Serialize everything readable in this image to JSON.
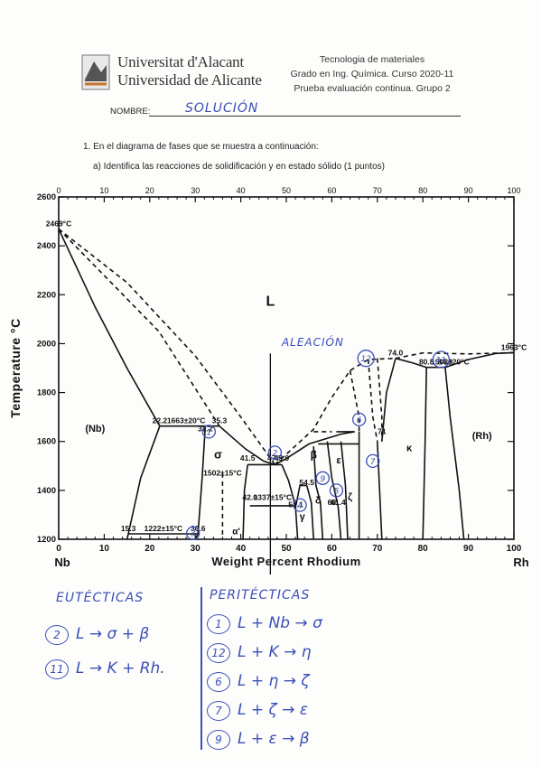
{
  "header": {
    "university_ca": "Universitat d'Alacant",
    "university_es": "Universidad de Alicante",
    "course_title": "Tecnologia de materiales",
    "course_line": "Grado en Ing. Química. Curso 2020-11",
    "test_line": "Prueba evaluación continua. Grupo 2",
    "name_label": "NOMBRE:",
    "name_value": "SOLUCIÓN"
  },
  "questions": {
    "q1": "1.   En el diagrama de fases que se muestra a continuación:",
    "q1a": "a)   Identifica las reacciones de solidificación y en estado sólido (1 puntos)"
  },
  "chart_data": {
    "type": "phase-diagram",
    "title": "",
    "xlabel": "Weight Percent Rhodium",
    "ylabel": "Temperature °C",
    "xlim": [
      0,
      100
    ],
    "ylim": [
      1200,
      2600
    ],
    "x_ticks": [
      "0",
      "10",
      "20",
      "30",
      "40",
      "50",
      "60",
      "70",
      "80",
      "90",
      "100"
    ],
    "y_ticks": [
      "1200",
      "1400",
      "1600",
      "1800",
      "2000",
      "2200",
      "2400",
      "2600"
    ],
    "x_end_left": "Nb",
    "x_end_right": "Rh",
    "phase_labels": [
      "L",
      "(Nb)",
      "(Rh)",
      "σ",
      "β",
      "ε",
      "ζ",
      "γ",
      "δ",
      "κ",
      "α'"
    ],
    "annotations": [
      {
        "text": "2469°C",
        "x": 0,
        "y": 2469
      },
      {
        "text": "1963°C",
        "x": 100,
        "y": 1963
      },
      {
        "text": "1663±20°C",
        "x": 28,
        "y": 1663
      },
      {
        "text": "22.2",
        "x": 22.2,
        "y": 1663
      },
      {
        "text": "35.3",
        "x": 35.3,
        "y": 1663
      },
      {
        "text": "32.2",
        "x": 32.2,
        "y": 1630
      },
      {
        "text": "1903±20°C",
        "x": 86,
        "y": 1903
      },
      {
        "text": "84.9",
        "x": 84.9,
        "y": 1903
      },
      {
        "text": "80.8",
        "x": 80.8,
        "y": 1903
      },
      {
        "text": "74.0",
        "x": 74.0,
        "y": 1940
      },
      {
        "text": "41.5",
        "x": 41.5,
        "y": 1510
      },
      {
        "text": "47.5",
        "x": 47.5,
        "y": 1510
      },
      {
        "text": "49.0",
        "x": 49.0,
        "y": 1510
      },
      {
        "text": "1502±15°C",
        "x": 36,
        "y": 1450
      },
      {
        "text": "42.0",
        "x": 42.0,
        "y": 1350
      },
      {
        "text": "1337±15°C",
        "x": 47,
        "y": 1350
      },
      {
        "text": "52.1",
        "x": 52.1,
        "y": 1320
      },
      {
        "text": "54.5",
        "x": 54.5,
        "y": 1410
      },
      {
        "text": "61.4",
        "x": 61.4,
        "y": 1330
      },
      {
        "text": "60",
        "x": 60,
        "y": 1330
      },
      {
        "text": "1222±15°C",
        "x": 23,
        "y": 1222
      },
      {
        "text": "15.3",
        "x": 15.3,
        "y": 1222
      },
      {
        "text": "30.6",
        "x": 30.6,
        "y": 1222
      },
      {
        "text": "71",
        "x": 71,
        "y": 1620
      }
    ],
    "handwritten": {
      "alloy_label": "ALEACIÓN",
      "circled_points": [
        {
          "n": "1",
          "x": 33,
          "y": 1640
        },
        {
          "n": "2",
          "x": 47.5,
          "y": 1555
        },
        {
          "n": "3",
          "x": 29.5,
          "y": 1225
        },
        {
          "n": "4",
          "x": 53,
          "y": 1340
        },
        {
          "n": "5",
          "x": 61,
          "y": 1400
        },
        {
          "n": "6",
          "x": 66,
          "y": 1690
        },
        {
          "n": "7",
          "x": 69,
          "y": 1520
        },
        {
          "n": "9",
          "x": 58,
          "y": 1450
        },
        {
          "n": "11",
          "x": 84,
          "y": 1935
        },
        {
          "n": "12",
          "x": 67.5,
          "y": 1940
        }
      ]
    }
  },
  "answers": {
    "eutectic_title": "EUTÉCTICAS",
    "eutectics": [
      {
        "num": "2",
        "reaction": "L → σ + β"
      },
      {
        "num": "11",
        "reaction": "L → K + Rh."
      }
    ],
    "peritectic_title": "PERITÉCTICAS",
    "peritectics": [
      {
        "num": "1",
        "reaction": "L + Nb → σ"
      },
      {
        "num": "12",
        "reaction": "L + K → η"
      },
      {
        "num": "6",
        "reaction": "L + η → ζ"
      },
      {
        "num": "7",
        "reaction": "L + ζ → ε"
      },
      {
        "num": "9",
        "reaction": "L + ε → β"
      }
    ]
  }
}
